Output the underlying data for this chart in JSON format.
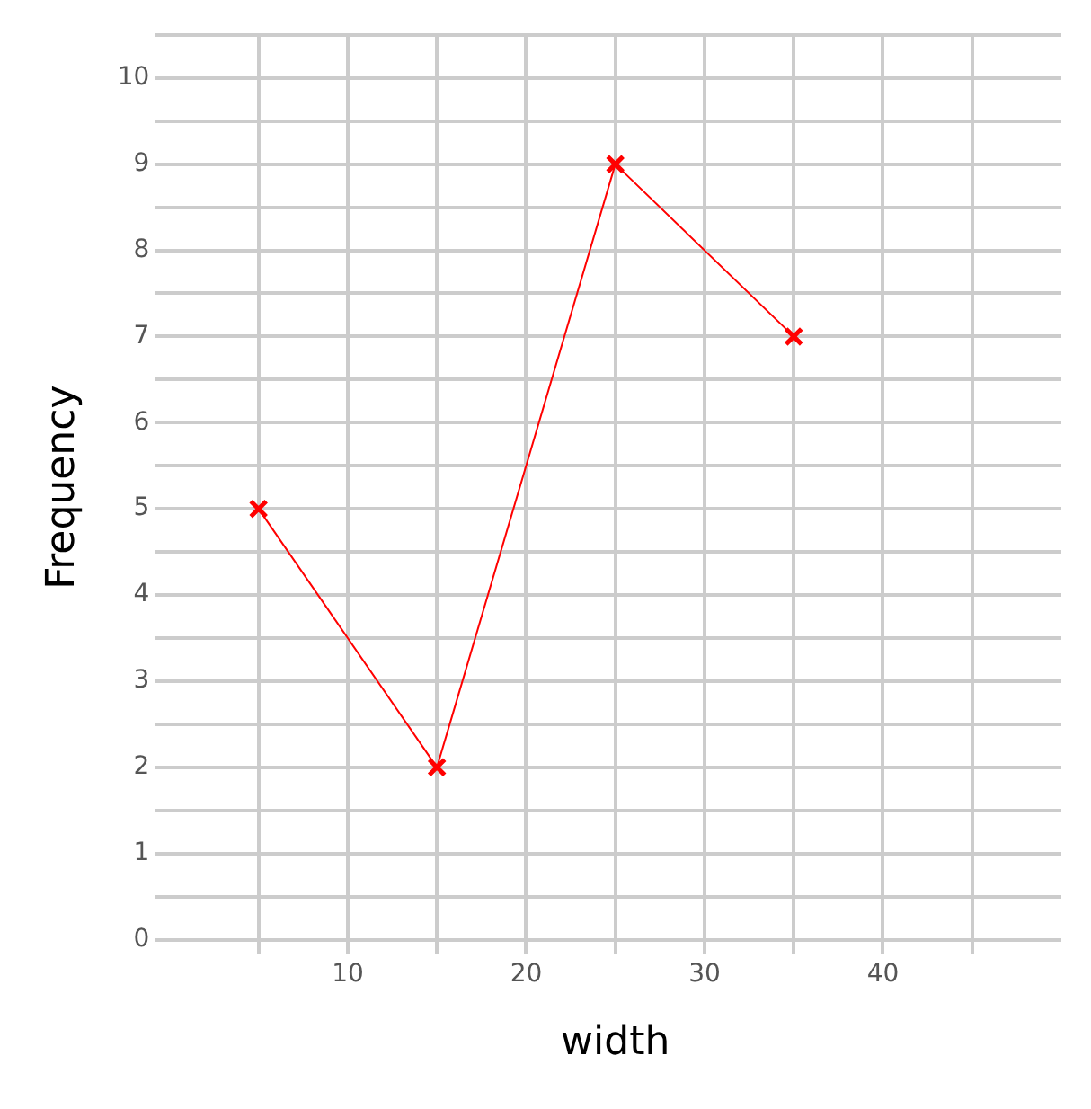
{
  "chart_data": {
    "type": "line",
    "xlabel": "width",
    "ylabel": "Frequency",
    "x": [
      5,
      15,
      25,
      35
    ],
    "series": [
      {
        "color": "#ff0000",
        "values": [
          5,
          2,
          9,
          7
        ]
      }
    ],
    "xlim": [
      0,
      50
    ],
    "xticks": [
      {
        "value": 5,
        "label": null
      },
      10,
      {
        "value": 15,
        "label": null
      },
      20,
      {
        "value": 25,
        "label": null
      },
      30,
      {
        "value": 35,
        "label": null
      },
      40,
      {
        "value": 45,
        "label": null
      }
    ],
    "ylim": [
      0,
      10.5
    ],
    "yticks": [
      0,
      {
        "value": 0.5,
        "label": null
      },
      1,
      {
        "value": 1.5,
        "label": null
      },
      2,
      {
        "value": 2.5,
        "label": null
      },
      3,
      {
        "value": 3.5,
        "label": null
      },
      4,
      {
        "value": 4.5,
        "label": null
      },
      5,
      {
        "value": 5.5,
        "label": null
      },
      6,
      {
        "value": 6.5,
        "label": null
      },
      7,
      {
        "value": 7.5,
        "label": null
      },
      8,
      {
        "value": 8.5,
        "label": null
      },
      9,
      {
        "value": 9.5,
        "label": null
      },
      10,
      {
        "value": 10.5,
        "label": null
      }
    ],
    "grid": true,
    "legend": false,
    "marker": "cross",
    "line_style": "solid"
  }
}
